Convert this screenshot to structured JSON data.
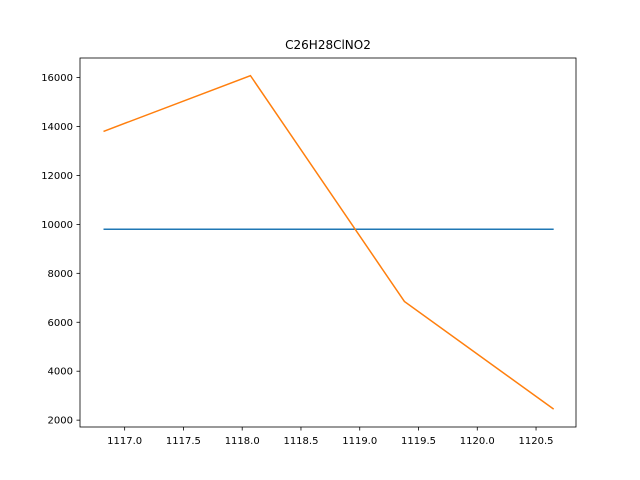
{
  "chart_data": {
    "type": "line",
    "title": "C26H28ClNO2",
    "xlabel": "",
    "ylabel": "",
    "xlim": [
      1116.62,
      1120.84
    ],
    "ylim": [
      1720,
      16800
    ],
    "xticks": [
      1117.0,
      1117.5,
      1118.0,
      1118.5,
      1119.0,
      1119.5,
      1120.0,
      1120.5
    ],
    "xtick_labels": [
      "1117.0",
      "1117.5",
      "1118.0",
      "1118.5",
      "1119.0",
      "1119.5",
      "1120.0",
      "1120.5"
    ],
    "yticks": [
      2000,
      4000,
      6000,
      8000,
      10000,
      12000,
      14000,
      16000
    ],
    "ytick_labels": [
      "2000",
      "4000",
      "6000",
      "8000",
      "10000",
      "12000",
      "14000",
      "16000"
    ],
    "grid": false,
    "series": [
      {
        "color": "#1f77b4",
        "x": [
          1116.82,
          1120.65
        ],
        "y": [
          9800,
          9800
        ]
      },
      {
        "color": "#ff7f0e",
        "x": [
          1116.82,
          1118.07,
          1119.38,
          1120.65
        ],
        "y": [
          13800,
          16080,
          6850,
          2450
        ]
      }
    ]
  }
}
